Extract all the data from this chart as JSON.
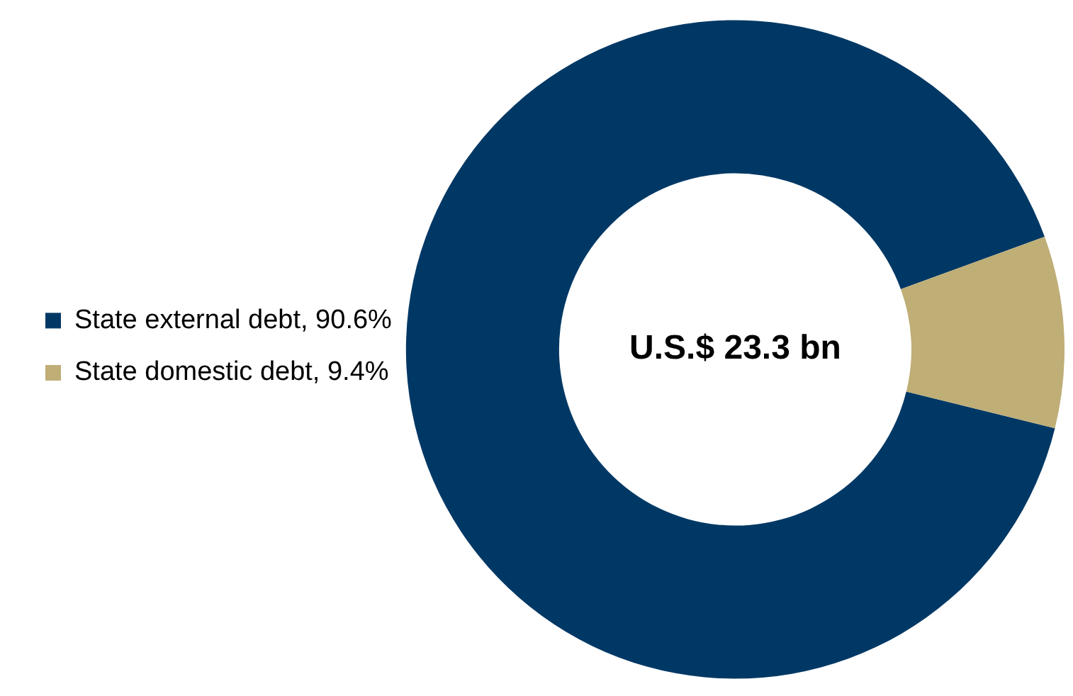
{
  "chart_data": {
    "type": "donut",
    "categories": [
      "State external debt, 90.6%",
      "State domestic debt, 9.4%"
    ],
    "values": [
      90.6,
      9.4
    ],
    "colors": [
      "#003865",
      "#bfae76"
    ],
    "annotations": [
      "U.S.$ 23.3 bn"
    ],
    "legend": "left"
  }
}
